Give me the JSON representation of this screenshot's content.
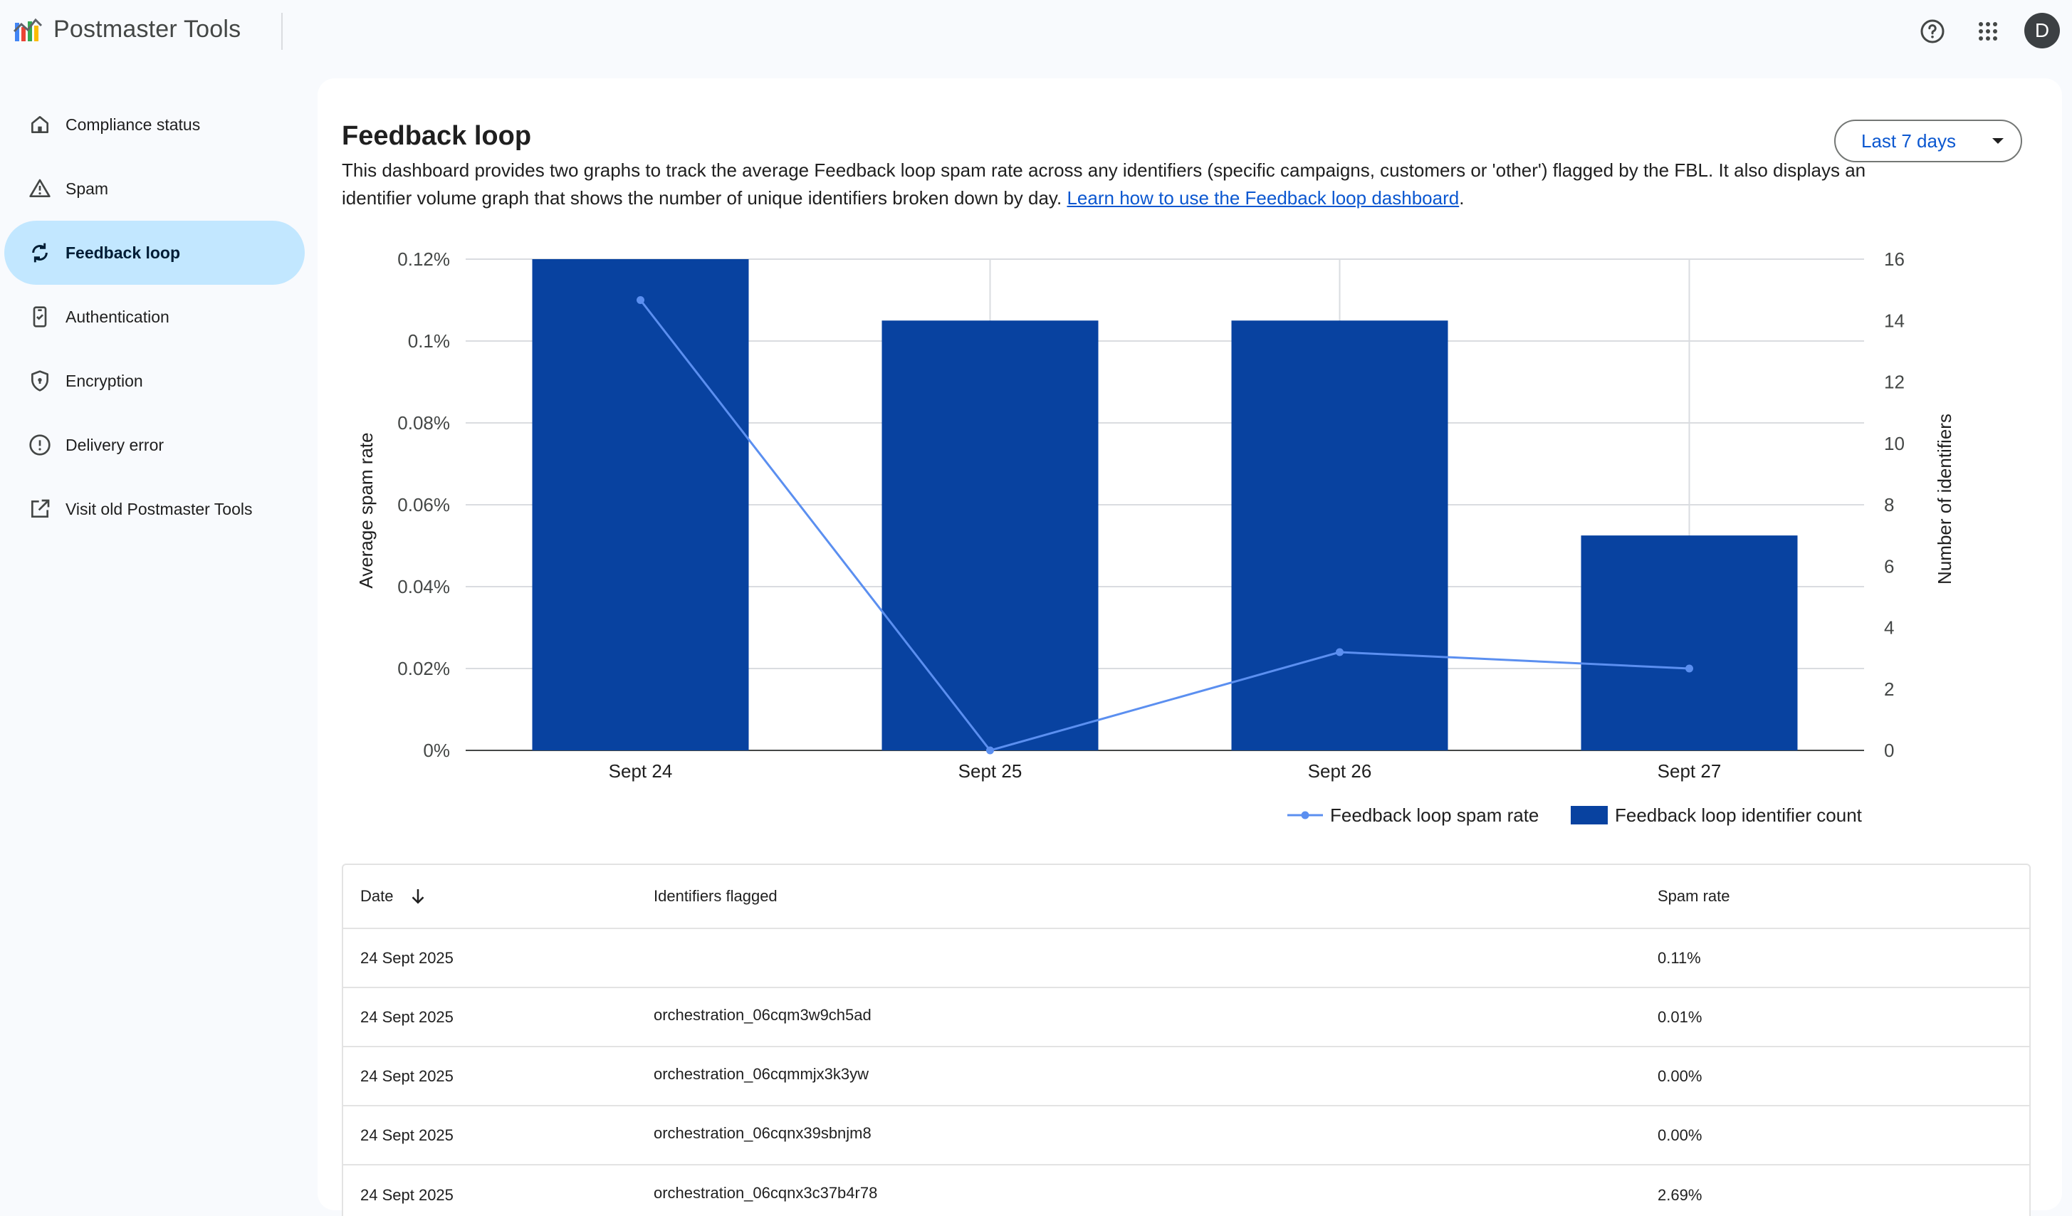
{
  "app": {
    "title": "Postmaster Tools"
  },
  "header": {
    "help_icon": "help-circle-icon",
    "apps_icon": "apps-grid-icon",
    "avatar_letter": "D"
  },
  "sidebar": {
    "items": [
      {
        "label": "Compliance status",
        "icon": "home-icon",
        "active": false
      },
      {
        "label": "Spam",
        "icon": "warning-icon",
        "active": false
      },
      {
        "label": "Feedback loop",
        "icon": "sync-icon",
        "active": true
      },
      {
        "label": "Authentication",
        "icon": "phone-check-icon",
        "active": false
      },
      {
        "label": "Encryption",
        "icon": "shield-icon",
        "active": false
      },
      {
        "label": "Delivery error",
        "icon": "error-circle-icon",
        "active": false
      },
      {
        "label": "Visit old Postmaster Tools",
        "icon": "open-in-new-icon",
        "active": false
      }
    ]
  },
  "main": {
    "title": "Feedback loop",
    "description": "This dashboard provides two graphs to track the average Feedback loop spam rate across any identifiers (specific campaigns, customers or 'other') flagged by the FBL. It also displays an identifier volume graph that shows the number of unique identifiers broken down by day.",
    "learn_link": "Learn how to use the Feedback loop dashboard",
    "period_end": ".",
    "range_selector": "Last 7 days"
  },
  "chart_data": {
    "type": "bar",
    "categories": [
      "Sept 24",
      "Sept 25",
      "Sept 26",
      "Sept 27"
    ],
    "series": [
      {
        "name": "Feedback loop identifier count",
        "kind": "bar",
        "axis": "right",
        "color": "#0842a0",
        "values": [
          16,
          14,
          14,
          7
        ]
      },
      {
        "name": "Feedback loop spam rate",
        "kind": "line",
        "axis": "left",
        "color": "#5b8ff0",
        "values": [
          0.11,
          0.0,
          0.024,
          0.02
        ]
      }
    ],
    "ylabel": "Average spam rate",
    "y2label": "Number of identifiers",
    "ylim": [
      0,
      0.12
    ],
    "y2lim": [
      0,
      16
    ],
    "yticks": [
      "0%",
      "0.02%",
      "0.04%",
      "0.06%",
      "0.08%",
      "0.1%",
      "0.12%"
    ],
    "y2ticks": [
      "0",
      "2",
      "4",
      "6",
      "8",
      "10",
      "12",
      "14",
      "16"
    ],
    "grid": true,
    "legend_position": "bottom-right"
  },
  "table": {
    "headers": [
      "Date",
      "Identifiers flagged",
      "Spam rate"
    ],
    "rows": [
      [
        "24 Sept 2025",
        "",
        "0.11%"
      ],
      [
        "24 Sept 2025",
        "orchestration_06cqm3w9ch5ad",
        "0.01%"
      ],
      [
        "24 Sept 2025",
        "orchestration_06cqmmjx3k3yw",
        "0.00%"
      ],
      [
        "24 Sept 2025",
        "orchestration_06cqnx39sbnjm8",
        "0.00%"
      ],
      [
        "24 Sept 2025",
        "orchestration_06cqnx3c37b4r78",
        "2.69%"
      ]
    ]
  }
}
